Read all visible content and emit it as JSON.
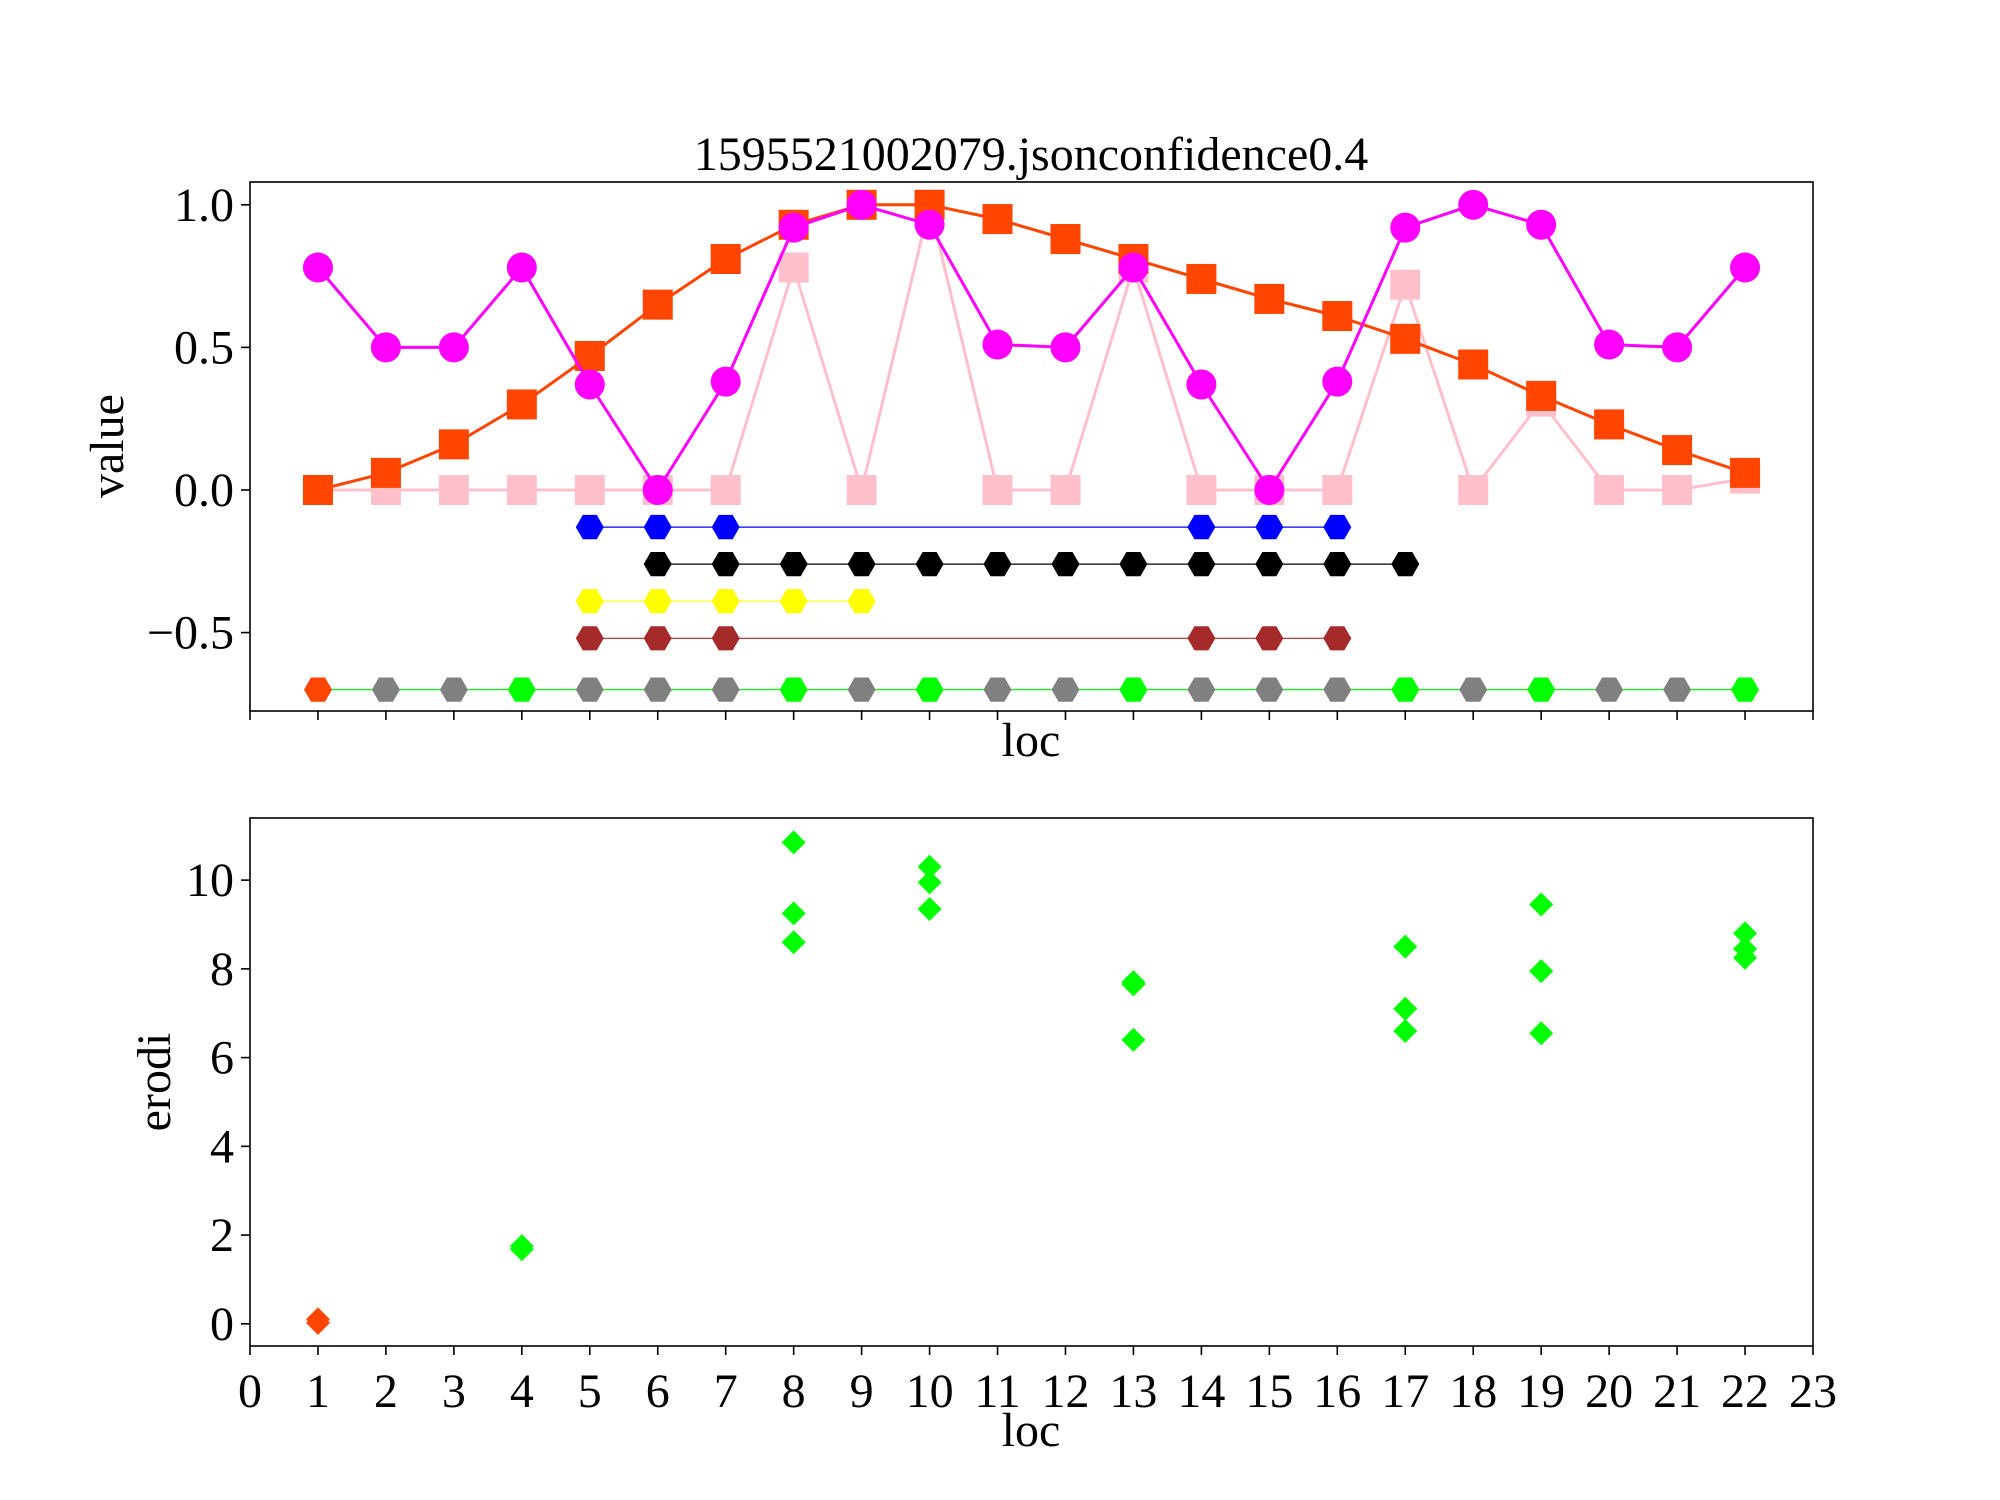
{
  "chart_data": [
    {
      "type": "line",
      "title": "1595521002079.jsonconfidence0.4",
      "xlabel": "loc",
      "ylabel": "value",
      "xlim": [
        0,
        23
      ],
      "ylim": [
        -0.775,
        1.08
      ],
      "yticks": [
        -0.5,
        0.0,
        0.5,
        1.0
      ],
      "ytick_labels": [
        "−0.5",
        "0.0",
        "0.5",
        "1.0"
      ],
      "xtick_labels_visible": false,
      "legend": "none",
      "grid": false,
      "series": [
        {
          "color": "#ffc0cb",
          "marker": "square",
          "line_width": 3,
          "x": [
            1,
            2,
            3,
            4,
            5,
            6,
            7,
            8,
            9,
            10,
            11,
            12,
            13,
            14,
            15,
            16,
            17,
            18,
            19,
            20,
            21,
            22
          ],
          "y": [
            0,
            0,
            0,
            0,
            0,
            0,
            0,
            0.78,
            0,
            1.0,
            0,
            0,
            0.78,
            0,
            0,
            0,
            0.72,
            0,
            0.31,
            0,
            0,
            0.04
          ]
        },
        {
          "color": "#ff4500",
          "marker": "square",
          "line_width": 3,
          "x": [
            1,
            2,
            3,
            4,
            5,
            6,
            7,
            8,
            9,
            10,
            11,
            12,
            13,
            14,
            15,
            16,
            17,
            18,
            19,
            20,
            21,
            22
          ],
          "y": [
            0,
            0.06,
            0.16,
            0.3,
            0.47,
            0.65,
            0.81,
            0.93,
            1.0,
            1.0,
            0.95,
            0.88,
            0.81,
            0.74,
            0.67,
            0.61,
            0.53,
            0.44,
            0.33,
            0.23,
            0.14,
            0.06
          ]
        },
        {
          "color": "#ff00ff",
          "marker": "circle",
          "line_width": 3,
          "x": [
            1,
            2,
            3,
            4,
            5,
            6,
            7,
            8,
            9,
            10,
            11,
            12,
            13,
            14,
            15,
            16,
            17,
            18,
            19,
            20,
            21,
            22
          ],
          "y": [
            0.78,
            0.5,
            0.5,
            0.78,
            0.37,
            0,
            0.38,
            0.92,
            1.0,
            0.93,
            0.51,
            0.5,
            0.78,
            0.37,
            0,
            0.38,
            0.92,
            1.0,
            0.93,
            0.51,
            0.5,
            0.78
          ]
        },
        {
          "color": "#0000ff",
          "marker": "hexagon",
          "line_width": 1.2,
          "x": [
            5,
            6,
            7,
            14,
            15,
            16
          ],
          "y": [
            -0.13,
            -0.13,
            -0.13,
            -0.13,
            -0.13,
            -0.13
          ]
        },
        {
          "color": "#000000",
          "marker": "hexagon",
          "line_width": 1.2,
          "x": [
            6,
            7,
            8,
            9,
            10,
            11,
            12,
            13,
            14,
            15,
            16,
            17
          ],
          "y": [
            -0.26,
            -0.26,
            -0.26,
            -0.26,
            -0.26,
            -0.26,
            -0.26,
            -0.26,
            -0.26,
            -0.26,
            -0.26,
            -0.26
          ]
        },
        {
          "color": "#ffff00",
          "marker": "hexagon",
          "line_width": 1.2,
          "x": [
            5,
            6,
            7,
            8,
            9
          ],
          "y": [
            -0.39,
            -0.39,
            -0.39,
            -0.39,
            -0.39
          ]
        },
        {
          "color": "#a52a2a",
          "marker": "hexagon",
          "line_width": 1.2,
          "x": [
            5,
            6,
            7,
            14,
            15,
            16
          ],
          "y": [
            -0.52,
            -0.52,
            -0.52,
            -0.52,
            -0.52,
            -0.52
          ]
        },
        {
          "color": "#00ff00",
          "marker": "hexagon",
          "line_width": 1.2,
          "x": [
            1,
            2,
            3,
            4,
            5,
            6,
            7,
            8,
            9,
            10,
            11,
            12,
            13,
            14,
            15,
            16,
            17,
            18,
            19,
            20,
            21,
            22
          ],
          "y": [
            -0.7,
            -0.7,
            -0.7,
            -0.7,
            -0.7,
            -0.7,
            -0.7,
            -0.7,
            -0.7,
            -0.7,
            -0.7,
            -0.7,
            -0.7,
            -0.7,
            -0.7,
            -0.7,
            -0.7,
            -0.7,
            -0.7,
            -0.7,
            -0.7,
            -0.7
          ],
          "marker_colors": [
            "#ff4500",
            "#808080",
            "#808080",
            "#00ff00",
            "#808080",
            "#808080",
            "#808080",
            "#00ff00",
            "#808080",
            "#00ff00",
            "#808080",
            "#808080",
            "#00ff00",
            "#808080",
            "#808080",
            "#808080",
            "#00ff00",
            "#808080",
            "#00ff00",
            "#808080",
            "#808080",
            "#00ff00"
          ]
        }
      ]
    },
    {
      "type": "scatter",
      "title": "",
      "xlabel": "loc",
      "ylabel": "erodi",
      "xlim": [
        0,
        23
      ],
      "ylim": [
        -0.5,
        11.4
      ],
      "xticks": [
        0,
        1,
        2,
        3,
        4,
        5,
        6,
        7,
        8,
        9,
        10,
        11,
        12,
        13,
        14,
        15,
        16,
        17,
        18,
        19,
        20,
        21,
        22,
        23
      ],
      "xtick_labels": [
        "0",
        "1",
        "2",
        "3",
        "4",
        "5",
        "6",
        "7",
        "8",
        "9",
        "10",
        "11",
        "12",
        "13",
        "14",
        "15",
        "16",
        "17",
        "18",
        "19",
        "20",
        "21",
        "22",
        "23"
      ],
      "yticks": [
        0,
        2,
        4,
        6,
        8,
        10
      ],
      "ytick_labels": [
        "0",
        "2",
        "4",
        "6",
        "8",
        "10"
      ],
      "legend": "none",
      "grid": false,
      "series": [
        {
          "color": "#ff4500",
          "marker": "diamond",
          "x": [
            1,
            1
          ],
          "y": [
            0.1,
            0.02
          ]
        },
        {
          "color": "#00ff00",
          "marker": "diamond",
          "x": [
            4,
            4,
            8,
            8,
            8,
            10,
            10,
            10,
            13,
            13,
            13,
            17,
            17,
            17,
            19,
            19,
            19,
            22,
            22,
            22
          ],
          "y": [
            1.75,
            1.68,
            10.85,
            9.25,
            8.6,
            10.3,
            9.95,
            9.35,
            7.7,
            7.65,
            6.4,
            8.5,
            7.1,
            6.6,
            9.45,
            7.95,
            6.55,
            8.8,
            8.45,
            8.25
          ]
        }
      ]
    }
  ]
}
